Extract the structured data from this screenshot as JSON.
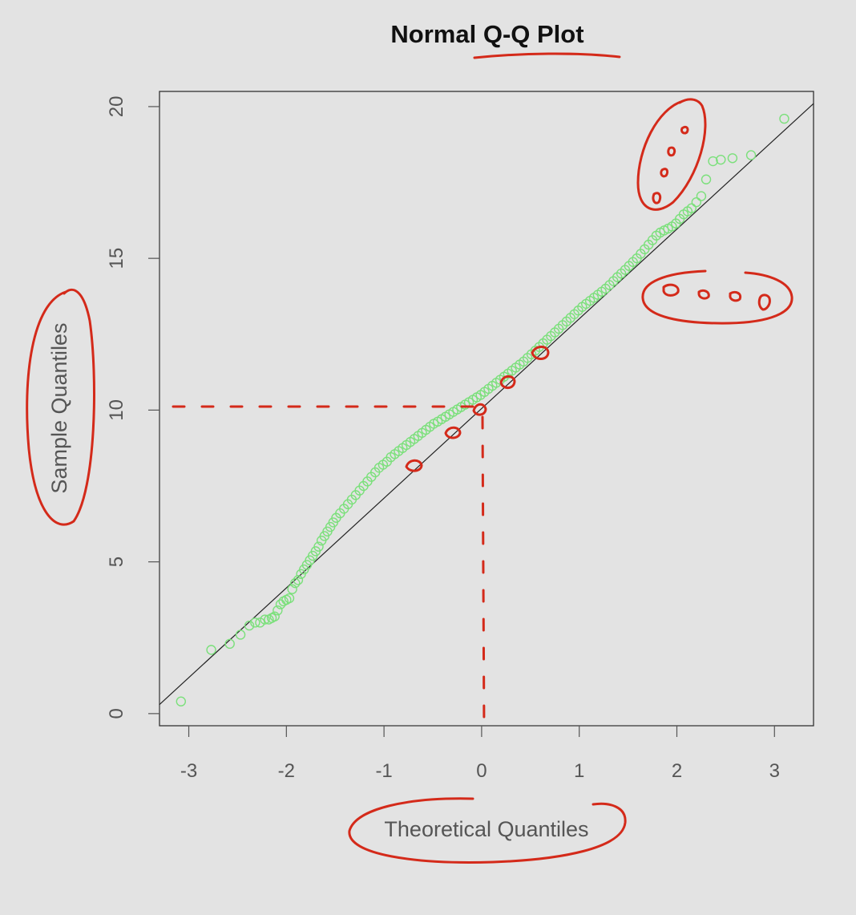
{
  "chart_data": {
    "type": "scatter",
    "title": "Normal Q-Q Plot",
    "xlabel": "Theoretical Quantiles",
    "ylabel": "Sample Quantiles",
    "xlim": [
      -3.3,
      3.4
    ],
    "ylim": [
      -0.4,
      20.5
    ],
    "xticks": [
      "-3",
      "-2",
      "-1",
      "0",
      "1",
      "2",
      "3"
    ],
    "yticks": [
      "0",
      "5",
      "10",
      "15",
      "20"
    ],
    "grid": false,
    "reference_line": {
      "x": [
        -3.3,
        3.4
      ],
      "y": [
        0.3,
        20.1
      ]
    },
    "series": [
      {
        "marker_color": "#7be07b",
        "x": [
          -3.08,
          -2.77,
          -2.58,
          -2.47,
          -2.38,
          -2.32,
          -2.27,
          -2.22,
          -2.18,
          -2.15,
          -2.12,
          -2.09,
          -2.06,
          -2.03,
          -2.0,
          -1.97,
          -1.94,
          -1.91,
          -1.88,
          -1.85,
          -1.82,
          -1.79,
          -1.76,
          -1.73,
          -1.7,
          -1.67,
          -1.64,
          -1.61,
          -1.58,
          -1.55,
          -1.52,
          -1.49,
          -1.45,
          -1.41,
          -1.37,
          -1.33,
          -1.29,
          -1.25,
          -1.21,
          -1.17,
          -1.13,
          -1.09,
          -1.05,
          -1.01,
          -0.97,
          -0.93,
          -0.89,
          -0.85,
          -0.81,
          -0.77,
          -0.73,
          -0.69,
          -0.65,
          -0.61,
          -0.57,
          -0.53,
          -0.49,
          -0.45,
          -0.41,
          -0.37,
          -0.33,
          -0.29,
          -0.25,
          -0.21,
          -0.17,
          -0.13,
          -0.09,
          -0.05,
          -0.01,
          0.03,
          0.07,
          0.11,
          0.15,
          0.19,
          0.23,
          0.27,
          0.31,
          0.35,
          0.39,
          0.43,
          0.47,
          0.51,
          0.55,
          0.59,
          0.63,
          0.67,
          0.71,
          0.75,
          0.79,
          0.83,
          0.87,
          0.91,
          0.95,
          0.99,
          1.03,
          1.07,
          1.11,
          1.15,
          1.19,
          1.23,
          1.27,
          1.31,
          1.35,
          1.39,
          1.43,
          1.47,
          1.51,
          1.55,
          1.59,
          1.63,
          1.67,
          1.71,
          1.75,
          1.79,
          1.83,
          1.87,
          1.91,
          1.95,
          1.99,
          2.03,
          2.07,
          2.11,
          2.15,
          2.2,
          2.25,
          2.3,
          2.37,
          2.45,
          2.57,
          2.76,
          3.1
        ],
        "y": [
          0.4,
          2.1,
          2.3,
          2.6,
          2.9,
          3.0,
          3.0,
          3.1,
          3.1,
          3.15,
          3.2,
          3.4,
          3.6,
          3.7,
          3.75,
          3.8,
          4.1,
          4.3,
          4.4,
          4.6,
          4.75,
          4.9,
          5.05,
          5.2,
          5.35,
          5.5,
          5.7,
          5.85,
          6.0,
          6.15,
          6.3,
          6.45,
          6.6,
          6.75,
          6.9,
          7.05,
          7.2,
          7.35,
          7.5,
          7.65,
          7.8,
          7.95,
          8.1,
          8.2,
          8.3,
          8.45,
          8.55,
          8.65,
          8.75,
          8.85,
          8.95,
          9.05,
          9.15,
          9.25,
          9.35,
          9.45,
          9.55,
          9.62,
          9.7,
          9.78,
          9.86,
          9.94,
          10.02,
          10.1,
          10.18,
          10.26,
          10.34,
          10.42,
          10.5,
          10.6,
          10.7,
          10.8,
          10.9,
          11.0,
          11.1,
          11.2,
          11.3,
          11.4,
          11.5,
          11.6,
          11.72,
          11.84,
          11.96,
          12.08,
          12.2,
          12.32,
          12.44,
          12.56,
          12.68,
          12.8,
          12.92,
          13.04,
          13.16,
          13.28,
          13.4,
          13.5,
          13.6,
          13.7,
          13.8,
          13.9,
          14.0,
          14.12,
          14.25,
          14.38,
          14.5,
          14.62,
          14.75,
          14.88,
          15.0,
          15.15,
          15.3,
          15.45,
          15.6,
          15.75,
          15.85,
          15.92,
          15.98,
          16.05,
          16.15,
          16.3,
          16.45,
          16.55,
          16.65,
          16.85,
          17.05,
          17.6,
          18.2,
          18.25,
          18.3,
          18.4,
          19.6
        ]
      }
    ]
  }
}
